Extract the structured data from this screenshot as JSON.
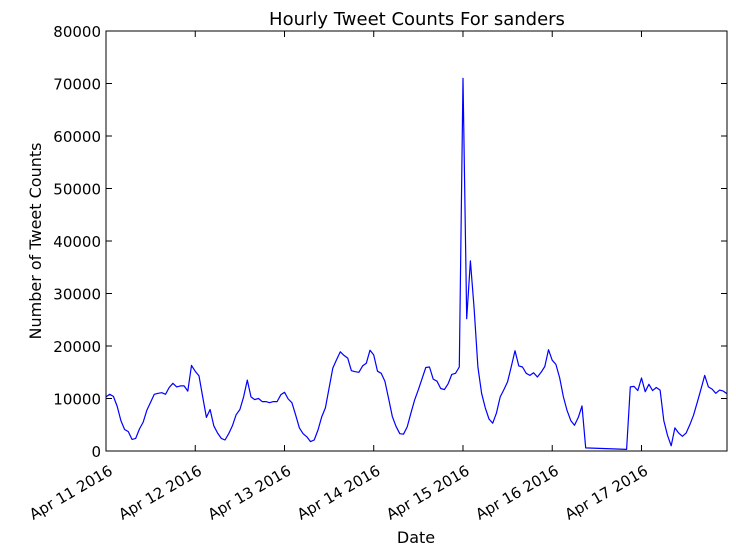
{
  "chart_data": {
    "type": "line",
    "title": "Hourly Tweet Counts For sanders",
    "xlabel": "Date",
    "ylabel": "Number of Tweet Counts",
    "ylim": [
      0,
      80000
    ],
    "yticks": [
      "0",
      "10000",
      "20000",
      "30000",
      "40000",
      "50000",
      "60000",
      "70000",
      "80000"
    ],
    "xlim": [
      "2016-04-11 00:00",
      "2016-04-17 23:00"
    ],
    "xticks": [
      {
        "label": "Apr 11 2016",
        "date": "2016-04-11 00:00"
      },
      {
        "label": "Apr 12 2016",
        "date": "2016-04-12 00:00"
      },
      {
        "label": "Apr 13 2016",
        "date": "2016-04-13 00:00"
      },
      {
        "label": "Apr 14 2016",
        "date": "2016-04-14 00:00"
      },
      {
        "label": "Apr 15 2016",
        "date": "2016-04-15 00:00"
      },
      {
        "label": "Apr 16 2016",
        "date": "2016-04-16 00:00"
      },
      {
        "label": "Apr 17 2016",
        "date": "2016-04-17 00:00"
      }
    ],
    "grid": false,
    "line_color": "#0000ff",
    "series": [
      {
        "points": [
          [
            "2016-04-11 00:00",
            10300
          ],
          [
            "2016-04-11 01:00",
            10800
          ],
          [
            "2016-04-11 02:00",
            10400
          ],
          [
            "2016-04-11 03:00",
            8500
          ],
          [
            "2016-04-11 04:00",
            5800
          ],
          [
            "2016-04-11 05:00",
            4100
          ],
          [
            "2016-04-11 06:00",
            3700
          ],
          [
            "2016-04-11 07:00",
            2200
          ],
          [
            "2016-04-11 08:00",
            2400
          ],
          [
            "2016-04-11 09:00",
            4200
          ],
          [
            "2016-04-11 10:00",
            5500
          ],
          [
            "2016-04-11 11:00",
            7800
          ],
          [
            "2016-04-11 12:00",
            9300
          ],
          [
            "2016-04-11 13:00",
            10800
          ],
          [
            "2016-04-11 14:00",
            11000
          ],
          [
            "2016-04-11 15:00",
            11100
          ],
          [
            "2016-04-11 16:00",
            10800
          ],
          [
            "2016-04-11 17:00",
            12100
          ],
          [
            "2016-04-11 18:00",
            12900
          ],
          [
            "2016-04-11 19:00",
            12200
          ],
          [
            "2016-04-11 20:00",
            12400
          ],
          [
            "2016-04-11 21:00",
            12400
          ],
          [
            "2016-04-11 22:00",
            11400
          ],
          [
            "2016-04-11 23:00",
            16300
          ],
          [
            "2016-04-12 00:00",
            15200
          ],
          [
            "2016-04-12 01:00",
            14300
          ],
          [
            "2016-04-12 02:00",
            10300
          ],
          [
            "2016-04-12 03:00",
            6400
          ],
          [
            "2016-04-12 04:00",
            7900
          ],
          [
            "2016-04-12 05:00",
            4800
          ],
          [
            "2016-04-12 06:00",
            3400
          ],
          [
            "2016-04-12 07:00",
            2400
          ],
          [
            "2016-04-12 08:00",
            2100
          ],
          [
            "2016-04-12 09:00",
            3300
          ],
          [
            "2016-04-12 10:00",
            4800
          ],
          [
            "2016-04-12 11:00",
            6900
          ],
          [
            "2016-04-12 12:00",
            7900
          ],
          [
            "2016-04-12 13:00",
            10300
          ],
          [
            "2016-04-12 14:00",
            13500
          ],
          [
            "2016-04-12 15:00",
            10300
          ],
          [
            "2016-04-12 16:00",
            9800
          ],
          [
            "2016-04-12 17:00",
            10000
          ],
          [
            "2016-04-12 18:00",
            9400
          ],
          [
            "2016-04-12 19:00",
            9400
          ],
          [
            "2016-04-12 20:00",
            9200
          ],
          [
            "2016-04-12 21:00",
            9400
          ],
          [
            "2016-04-12 22:00",
            9400
          ],
          [
            "2016-04-12 23:00",
            10700
          ],
          [
            "2016-04-13 00:00",
            11200
          ],
          [
            "2016-04-13 01:00",
            9900
          ],
          [
            "2016-04-13 02:00",
            9200
          ],
          [
            "2016-04-13 03:00",
            6900
          ],
          [
            "2016-04-13 04:00",
            4400
          ],
          [
            "2016-04-13 05:00",
            3300
          ],
          [
            "2016-04-13 06:00",
            2700
          ],
          [
            "2016-04-13 07:00",
            1800
          ],
          [
            "2016-04-13 08:00",
            2100
          ],
          [
            "2016-04-13 09:00",
            4000
          ],
          [
            "2016-04-13 10:00",
            6500
          ],
          [
            "2016-04-13 11:00",
            8200
          ],
          [
            "2016-04-13 12:00",
            12000
          ],
          [
            "2016-04-13 13:00",
            15800
          ],
          [
            "2016-04-13 14:00",
            17400
          ],
          [
            "2016-04-13 15:00",
            18900
          ],
          [
            "2016-04-13 16:00",
            18200
          ],
          [
            "2016-04-13 17:00",
            17700
          ],
          [
            "2016-04-13 18:00",
            15300
          ],
          [
            "2016-04-13 19:00",
            15100
          ],
          [
            "2016-04-13 20:00",
            15000
          ],
          [
            "2016-04-13 21:00",
            16200
          ],
          [
            "2016-04-13 22:00",
            16700
          ],
          [
            "2016-04-13 23:00",
            19200
          ],
          [
            "2016-04-14 00:00",
            18300
          ],
          [
            "2016-04-14 01:00",
            15200
          ],
          [
            "2016-04-14 02:00",
            14800
          ],
          [
            "2016-04-14 03:00",
            13300
          ],
          [
            "2016-04-14 04:00",
            10000
          ],
          [
            "2016-04-14 05:00",
            6600
          ],
          [
            "2016-04-14 06:00",
            4700
          ],
          [
            "2016-04-14 07:00",
            3300
          ],
          [
            "2016-04-14 08:00",
            3200
          ],
          [
            "2016-04-14 09:00",
            4600
          ],
          [
            "2016-04-14 10:00",
            7200
          ],
          [
            "2016-04-14 11:00",
            9700
          ],
          [
            "2016-04-14 12:00",
            11700
          ],
          [
            "2016-04-14 13:00",
            13800
          ],
          [
            "2016-04-14 14:00",
            15900
          ],
          [
            "2016-04-14 15:00",
            16000
          ],
          [
            "2016-04-14 16:00",
            13700
          ],
          [
            "2016-04-14 17:00",
            13300
          ],
          [
            "2016-04-14 18:00",
            11900
          ],
          [
            "2016-04-14 19:00",
            11700
          ],
          [
            "2016-04-14 20:00",
            12800
          ],
          [
            "2016-04-14 21:00",
            14600
          ],
          [
            "2016-04-14 22:00",
            14800
          ],
          [
            "2016-04-14 23:00",
            16000
          ],
          [
            "2016-04-15 00:00",
            71000
          ],
          [
            "2016-04-15 01:00",
            25200
          ],
          [
            "2016-04-15 02:00",
            36200
          ],
          [
            "2016-04-15 03:00",
            27200
          ],
          [
            "2016-04-15 04:00",
            16000
          ],
          [
            "2016-04-15 05:00",
            11000
          ],
          [
            "2016-04-15 06:00",
            8200
          ],
          [
            "2016-04-15 07:00",
            6100
          ],
          [
            "2016-04-15 08:00",
            5300
          ],
          [
            "2016-04-15 09:00",
            7200
          ],
          [
            "2016-04-15 10:00",
            10300
          ],
          [
            "2016-04-15 11:00",
            11700
          ],
          [
            "2016-04-15 12:00",
            13200
          ],
          [
            "2016-04-15 13:00",
            16100
          ],
          [
            "2016-04-15 14:00",
            19100
          ],
          [
            "2016-04-15 15:00",
            16200
          ],
          [
            "2016-04-15 16:00",
            16000
          ],
          [
            "2016-04-15 17:00",
            14800
          ],
          [
            "2016-04-15 18:00",
            14400
          ],
          [
            "2016-04-15 19:00",
            14900
          ],
          [
            "2016-04-15 20:00",
            14100
          ],
          [
            "2016-04-15 21:00",
            15000
          ],
          [
            "2016-04-15 22:00",
            16100
          ],
          [
            "2016-04-15 23:00",
            19300
          ],
          [
            "2016-04-16 00:00",
            17300
          ],
          [
            "2016-04-16 01:00",
            16500
          ],
          [
            "2016-04-16 02:00",
            13900
          ],
          [
            "2016-04-16 03:00",
            10300
          ],
          [
            "2016-04-16 04:00",
            7700
          ],
          [
            "2016-04-16 05:00",
            5800
          ],
          [
            "2016-04-16 06:00",
            4900
          ],
          [
            "2016-04-16 07:00",
            6400
          ],
          [
            "2016-04-16 08:00",
            8600
          ],
          [
            "2016-04-16 09:00",
            600
          ],
          [
            "2016-04-16 20:00",
            300
          ],
          [
            "2016-04-16 21:00",
            12200
          ],
          [
            "2016-04-16 22:00",
            12300
          ],
          [
            "2016-04-16 23:00",
            11500
          ],
          [
            "2016-04-17 00:00",
            13900
          ],
          [
            "2016-04-17 01:00",
            11300
          ],
          [
            "2016-04-17 02:00",
            12700
          ],
          [
            "2016-04-17 03:00",
            11500
          ],
          [
            "2016-04-17 04:00",
            12100
          ],
          [
            "2016-04-17 05:00",
            11600
          ],
          [
            "2016-04-17 06:00",
            5800
          ],
          [
            "2016-04-17 07:00",
            3000
          ],
          [
            "2016-04-17 08:00",
            1000
          ],
          [
            "2016-04-17 09:00",
            4400
          ],
          [
            "2016-04-17 10:00",
            3400
          ],
          [
            "2016-04-17 11:00",
            2800
          ],
          [
            "2016-04-17 12:00",
            3400
          ],
          [
            "2016-04-17 13:00",
            5000
          ],
          [
            "2016-04-17 14:00",
            6800
          ],
          [
            "2016-04-17 15:00",
            9300
          ],
          [
            "2016-04-17 16:00",
            11800
          ],
          [
            "2016-04-17 17:00",
            14400
          ],
          [
            "2016-04-17 18:00",
            12200
          ],
          [
            "2016-04-17 19:00",
            11800
          ],
          [
            "2016-04-17 20:00",
            11000
          ],
          [
            "2016-04-17 21:00",
            11600
          ],
          [
            "2016-04-17 22:00",
            11400
          ],
          [
            "2016-04-17 23:00",
            10900
          ],
          [
            "2016-04-18 00:00",
            11600
          ],
          [
            "2016-04-18 01:00",
            9900
          ]
        ]
      }
    ]
  }
}
